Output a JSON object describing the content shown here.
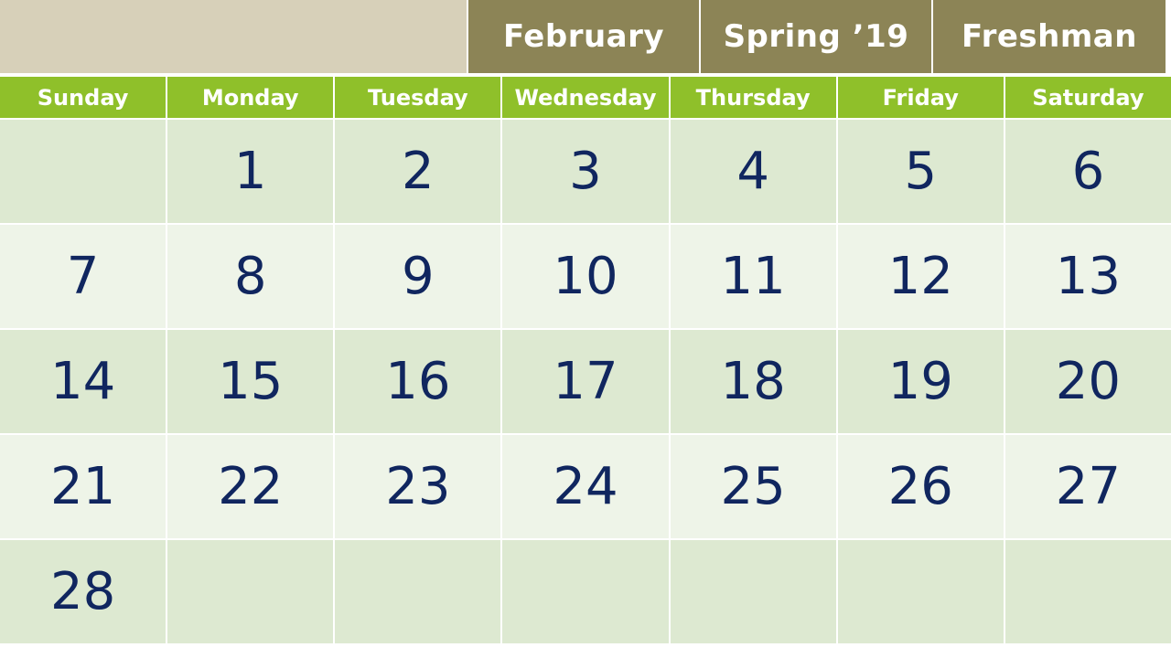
{
  "header": {
    "month": "February",
    "term": "Spring ’19",
    "level": "Freshman"
  },
  "colors": {
    "header_bg": "#8c8456",
    "header_blank": "#d7d0b9",
    "dow_bg": "#8fc02a",
    "row_dark": "#dde9d1",
    "row_light": "#eef4e8",
    "day_text": "#10265f"
  },
  "calendar": {
    "weekdays": [
      "Sunday",
      "Monday",
      "Tuesday",
      "Wednesday",
      "Thursday",
      "Friday",
      "Saturday"
    ],
    "weeks": [
      [
        "",
        "1",
        "2",
        "3",
        "4",
        "5",
        "6"
      ],
      [
        "7",
        "8",
        "9",
        "10",
        "11",
        "12",
        "13"
      ],
      [
        "14",
        "15",
        "16",
        "17",
        "18",
        "19",
        "20"
      ],
      [
        "21",
        "22",
        "23",
        "24",
        "25",
        "26",
        "27"
      ],
      [
        "28",
        "",
        "",
        "",
        "",
        "",
        ""
      ]
    ]
  }
}
